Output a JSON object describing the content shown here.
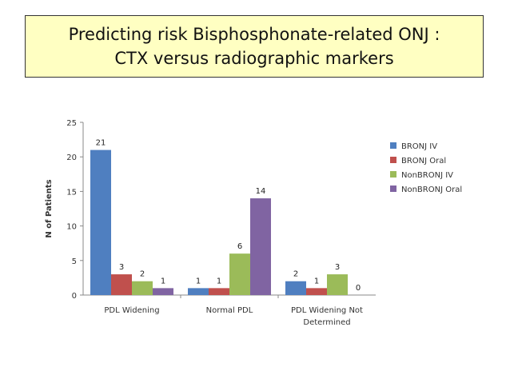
{
  "slide": {
    "title_line1": "Predicting risk Bisphosphonate-related ONJ :",
    "title_line2": "CTX versus radiographic markers"
  },
  "chart_data": {
    "type": "bar",
    "ylabel": "N of Patients",
    "ylim": [
      0,
      25
    ],
    "yticks": [
      0,
      5,
      10,
      15,
      20,
      25
    ],
    "grid": false,
    "legend_position": "right",
    "categories": [
      [
        "PDL Widening"
      ],
      [
        "Normal PDL"
      ],
      [
        "PDL Widening Not",
        "Determined"
      ]
    ],
    "series": [
      {
        "name": "BRONJ IV",
        "color": "#4f7fc0",
        "values": [
          21,
          1,
          2
        ]
      },
      {
        "name": "BRONJ Oral",
        "color": "#c0504d",
        "values": [
          3,
          1,
          1
        ]
      },
      {
        "name": "NonBRONJ IV",
        "color": "#9bbb59",
        "values": [
          2,
          6,
          3
        ]
      },
      {
        "name": "NonBRONJ Oral",
        "color": "#8064a2",
        "values": [
          1,
          14,
          0
        ]
      }
    ]
  }
}
